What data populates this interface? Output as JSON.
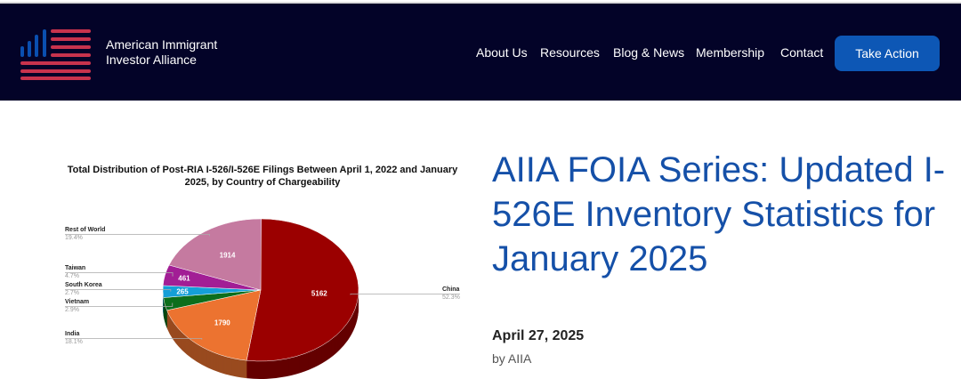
{
  "header": {
    "brand_line1": "American Immigrant",
    "brand_line2": "Investor Alliance",
    "nav": [
      {
        "label": "About Us"
      },
      {
        "label": "Resources"
      },
      {
        "label": "Blog & News"
      },
      {
        "label": "Membership"
      },
      {
        "label": "Contact"
      }
    ],
    "cta": "Take Action"
  },
  "post": {
    "title": "AIIA FOIA Series: Updated I-526E Inventory Statistics for January 2025",
    "date": "April 27, 2025",
    "byline": "by AIIA"
  },
  "chart_data": {
    "type": "pie",
    "title": "Total Distribution of Post-RIA I-526/I-526E Filings Between April 1, 2022 and January 2025, by Country of Chargeability",
    "slices": [
      {
        "name": "China",
        "value": 5162,
        "value_label": "5162",
        "percent": "52.3%",
        "pct": 52.3,
        "color": "#9b0000"
      },
      {
        "name": "India",
        "value": 1790,
        "value_label": "1790",
        "percent": "18.1%",
        "pct": 18.1,
        "color": "#ec7330"
      },
      {
        "name": "Vietnam",
        "value_label": "",
        "percent": "2.9%",
        "pct": 2.9,
        "color": "#0c6e1c"
      },
      {
        "name": "South Korea",
        "value": 265,
        "value_label": "265",
        "percent": "2.7%",
        "pct": 2.7,
        "color": "#149fd8"
      },
      {
        "name": "Taiwan",
        "value": 461,
        "value_label": "461",
        "percent": "4.7%",
        "pct": 4.7,
        "color": "#a21e95"
      },
      {
        "name": "Rest of World",
        "value": 1914,
        "value_label": "1914",
        "percent": "19.4%",
        "pct": 19.4,
        "color": "#c57aa0"
      }
    ]
  }
}
